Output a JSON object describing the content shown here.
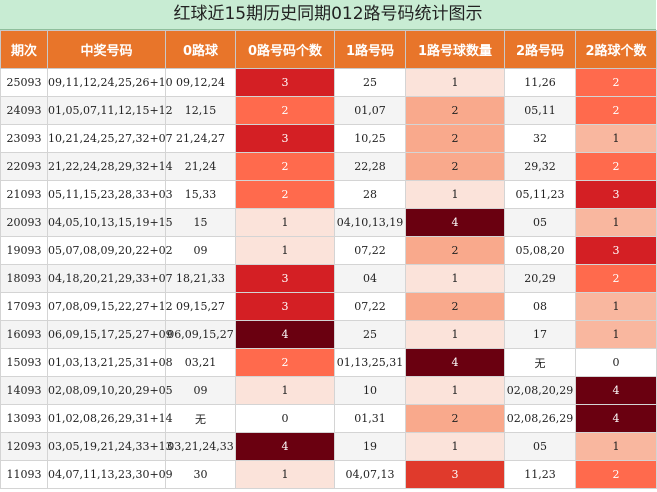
{
  "title": "红球近15期历史同期012路号码统计图示",
  "headers": [
    "期次",
    "中奖号码",
    "0路球",
    "0路号码个数",
    "1路号码",
    "1路号球数量",
    "2路号码",
    "2路球个数"
  ],
  "rows": [
    {
      "issue": "25093",
      "numbers": "09,11,12,24,25,26+10",
      "r0": "09,12,24",
      "c0": "3",
      "r1": "25",
      "c1": "1",
      "r2": "11,26",
      "c2": "2"
    },
    {
      "issue": "24093",
      "numbers": "01,05,07,11,12,15+12",
      "r0": "12,15",
      "c0": "2",
      "r1": "01,07",
      "c1": "2",
      "r2": "05,11",
      "c2": "2"
    },
    {
      "issue": "23093",
      "numbers": "10,21,24,25,27,32+07",
      "r0": "21,24,27",
      "c0": "3",
      "r1": "10,25",
      "c1": "2",
      "r2": "32",
      "c2": "1"
    },
    {
      "issue": "22093",
      "numbers": "21,22,24,28,29,32+14",
      "r0": "21,24",
      "c0": "2",
      "r1": "22,28",
      "c1": "2",
      "r2": "29,32",
      "c2": "2"
    },
    {
      "issue": "21093",
      "numbers": "05,11,15,23,28,33+03",
      "r0": "15,33",
      "c0": "2",
      "r1": "28",
      "c1": "1",
      "r2": "05,11,23",
      "c2": "3"
    },
    {
      "issue": "20093",
      "numbers": "04,05,10,13,15,19+15",
      "r0": "15",
      "c0": "1",
      "r1": "04,10,13,19",
      "c1": "4",
      "r2": "05",
      "c2": "1"
    },
    {
      "issue": "19093",
      "numbers": "05,07,08,09,20,22+02",
      "r0": "09",
      "c0": "1",
      "r1": "07,22",
      "c1": "2",
      "r2": "05,08,20",
      "c2": "3"
    },
    {
      "issue": "18093",
      "numbers": "04,18,20,21,29,33+07",
      "r0": "18,21,33",
      "c0": "3",
      "r1": "04",
      "c1": "1",
      "r2": "20,29",
      "c2": "2"
    },
    {
      "issue": "17093",
      "numbers": "07,08,09,15,22,27+12",
      "r0": "09,15,27",
      "c0": "3",
      "r1": "07,22",
      "c1": "2",
      "r2": "08",
      "c2": "1"
    },
    {
      "issue": "16093",
      "numbers": "06,09,15,17,25,27+09",
      "r0": "06,09,15,27",
      "c0": "4",
      "r1": "25",
      "c1": "1",
      "r2": "17",
      "c2": "1"
    },
    {
      "issue": "15093",
      "numbers": "01,03,13,21,25,31+08",
      "r0": "03,21",
      "c0": "2",
      "r1": "01,13,25,31",
      "c1": "4",
      "r2": "无",
      "c2": "0"
    },
    {
      "issue": "14093",
      "numbers": "02,08,09,10,20,29+05",
      "r0": "09",
      "c0": "1",
      "r1": "10",
      "c1": "1",
      "r2": "02,08,20,29",
      "c2": "4"
    },
    {
      "issue": "13093",
      "numbers": "01,02,08,26,29,31+14",
      "r0": "无",
      "c0": "0",
      "r1": "01,31",
      "c1": "2",
      "r2": "02,08,26,29",
      "c2": "4"
    },
    {
      "issue": "12093",
      "numbers": "03,05,19,21,24,33+13",
      "r0": "03,21,24,33",
      "c0": "4",
      "r1": "19",
      "c1": "1",
      "r2": "05",
      "c2": "1"
    },
    {
      "issue": "11093",
      "numbers": "04,07,11,13,23,30+09",
      "r0": "30",
      "c0": "1",
      "r1": "04,07,13",
      "c1": "3",
      "r2": "11,23",
      "c2": "2"
    }
  ]
}
